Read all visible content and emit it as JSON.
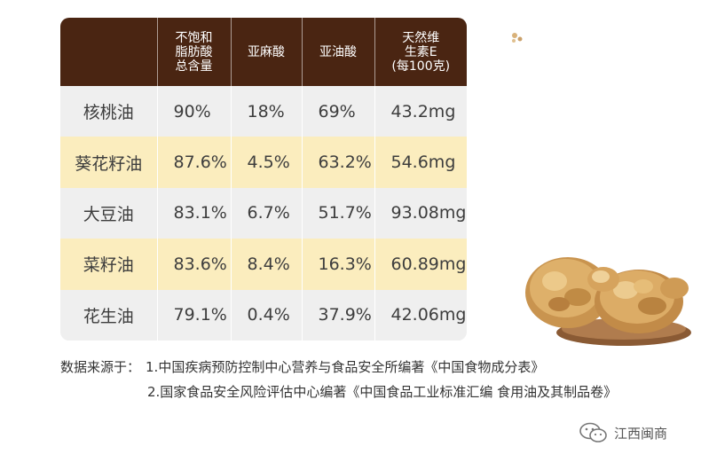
{
  "table": {
    "headers": [
      [
        ""
      ],
      [
        "不饱和",
        "脂肪酸",
        "总含量"
      ],
      [
        "亚麻酸"
      ],
      [
        "亚油酸"
      ],
      [
        "天然维",
        "生素E",
        "(每100克)"
      ]
    ],
    "rows": [
      [
        "核桃油",
        "90%",
        "18%",
        "69%",
        "43.2mg"
      ],
      [
        "葵花籽油",
        "87.6%",
        "4.5%",
        "63.2%",
        "54.6mg"
      ],
      [
        "大豆油",
        "83.1%",
        "6.7%",
        "51.7%",
        "93.08mg"
      ],
      [
        "菜籽油",
        "83.6%",
        "8.4%",
        "16.3%",
        "60.89mg"
      ],
      [
        "花生油",
        "79.1%",
        "0.4%",
        "37.9%",
        "42.06mg"
      ]
    ]
  },
  "source": {
    "label": "数据来源于：",
    "line1": "1.中国疾病预防控制中心营养与食品安全所编著《中国食物成分表》",
    "line2": "2.国家食品安全风险评估中心编著《中国食品工业标准汇编 食用油及其制品卷》"
  },
  "watermark": {
    "text": "江西闽商",
    "icon": "wechat-icon"
  },
  "colors": {
    "header_bg": "#4a2512",
    "row_gray": "#efefef",
    "row_yellow": "#fbedbe"
  }
}
